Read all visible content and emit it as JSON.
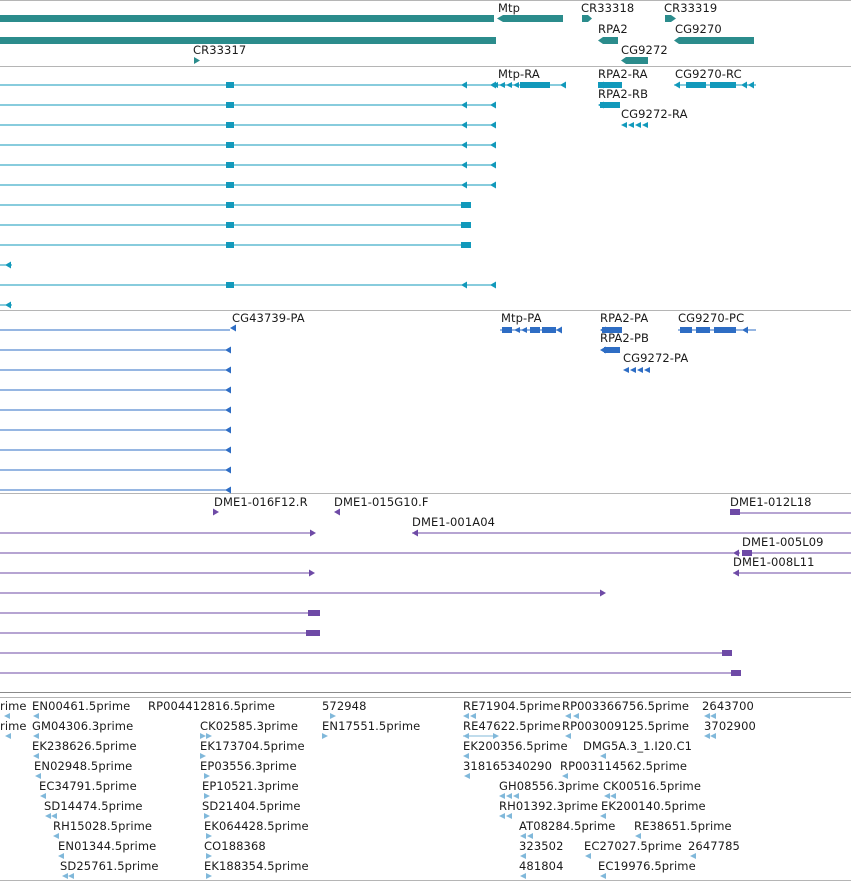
{
  "colors": {
    "gene": "#2b8c8c",
    "transcript": "#1199bb",
    "protein": "#2e6dc4",
    "clone": "#6e4aa6",
    "est": "#80b8da",
    "separator": "#b5b5b5"
  },
  "tracks": {
    "genes": {
      "labels": [
        "Mtp",
        "CR33318",
        "CR33319",
        "RPA2",
        "CG9270",
        "CR33317",
        "CG9272"
      ]
    },
    "transcripts": {
      "labels": [
        "Mtp-RA",
        "RPA2-RA",
        "CG9270-RC",
        "RPA2-RB",
        "CG9272-RA"
      ]
    },
    "proteins": {
      "labels": [
        "CG43739-PA",
        "Mtp-PA",
        "RPA2-PA",
        "CG9270-PC",
        "RPA2-PB",
        "CG9272-PA"
      ]
    },
    "clones": {
      "labels": [
        "DME1-016F12.R",
        "DME1-015G10.F",
        "DME1-012L18",
        "DME1-001A04",
        "DME1-005L09",
        "DME1-008L11"
      ]
    },
    "ests": {
      "labels": [
        "rime",
        "EN00461.5prime",
        "RP004412816.5prime",
        "572948",
        "RE71904.5prime",
        "RP003366756.5prime",
        "2643700",
        "rime",
        "GM04306.3prime",
        "CK02585.3prime",
        "EN17551.5prime",
        "RE47622.5prime",
        "RP003009125.5prime",
        "3702900",
        "EK238626.5prime",
        "EK173704.5prime",
        "EK200356.5prime",
        "DMG5A.3_1.I20.C1",
        "EN02948.5prime",
        "EP03556.3prime",
        "318165340290",
        "RP003114562.5prime",
        "EC34791.5prime",
        "EP10521.3prime",
        "GH08556.3prime",
        "CK00516.5prime",
        "SD14474.5prime",
        "SD21404.5prime",
        "RH01392.3prime",
        "EK200140.5prime",
        "RH15028.5prime",
        "EK064428.5prime",
        "AT08284.5prime",
        "RE38651.5prime",
        "EN01344.5prime",
        "CO188368",
        "323502",
        "EC27027.5prime",
        "2647785",
        "SD25761.5prime",
        "EK188354.5prime",
        "481804",
        "EC19976.5prime"
      ]
    }
  }
}
